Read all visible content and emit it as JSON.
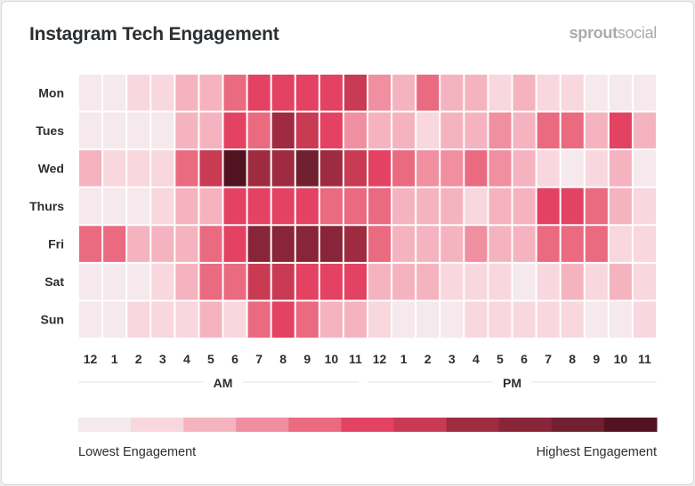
{
  "title": "Instagram Tech Engagement",
  "logo": {
    "bold": "sprout",
    "light": "social"
  },
  "chart_data": {
    "type": "heatmap",
    "title": "Instagram Tech Engagement",
    "rows": [
      "Mon",
      "Tues",
      "Wed",
      "Thurs",
      "Fri",
      "Sat",
      "Sun"
    ],
    "columns": [
      "12",
      "1",
      "2",
      "3",
      "4",
      "5",
      "6",
      "7",
      "8",
      "9",
      "10",
      "11",
      "12",
      "1",
      "2",
      "3",
      "4",
      "5",
      "6",
      "7",
      "8",
      "9",
      "10",
      "11"
    ],
    "column_groups": [
      {
        "label": "AM",
        "span": 12
      },
      {
        "label": "PM",
        "span": 12
      }
    ],
    "value_scale": "engagement level 0 (lowest) to 10 (highest)",
    "values": [
      [
        0,
        0,
        1,
        1,
        2,
        2,
        4,
        5,
        5,
        5,
        5,
        6,
        3,
        2,
        4,
        2,
        2,
        1,
        2,
        1,
        1,
        0,
        0,
        0
      ],
      [
        0,
        0,
        0,
        0,
        2,
        2,
        5,
        4,
        7,
        6,
        5,
        3,
        2,
        2,
        1,
        2,
        2,
        3,
        2,
        4,
        4,
        2,
        5,
        2
      ],
      [
        2,
        1,
        1,
        1,
        4,
        6,
        10,
        7,
        7,
        9,
        7,
        6,
        5,
        4,
        3,
        3,
        4,
        3,
        2,
        1,
        0,
        1,
        2,
        0
      ],
      [
        0,
        0,
        0,
        1,
        2,
        2,
        5,
        5,
        5,
        5,
        4,
        4,
        4,
        2,
        2,
        2,
        1,
        2,
        2,
        5,
        5,
        4,
        2,
        1
      ],
      [
        4,
        4,
        2,
        2,
        2,
        4,
        5,
        8,
        8,
        8,
        8,
        7,
        4,
        2,
        2,
        2,
        3,
        2,
        2,
        4,
        4,
        4,
        1,
        1
      ],
      [
        0,
        0,
        0,
        1,
        2,
        4,
        4,
        6,
        6,
        5,
        5,
        5,
        2,
        2,
        2,
        1,
        1,
        1,
        0,
        1,
        2,
        1,
        2,
        1
      ],
      [
        0,
        0,
        1,
        1,
        1,
        2,
        1,
        4,
        5,
        4,
        2,
        2,
        1,
        0,
        0,
        0,
        1,
        1,
        1,
        1,
        1,
        0,
        0,
        1
      ]
    ],
    "color_scale": [
      "#f5e9ed",
      "#f9d7df",
      "#f5b3c0",
      "#f08fa0",
      "#ea6a80",
      "#e34262",
      "#c93a53",
      "#9e2b40",
      "#882538",
      "#712030",
      "#52121f"
    ],
    "legend": {
      "low_label": "Lowest Engagement",
      "high_label": "Highest Engagement",
      "placement": "bottom"
    }
  }
}
